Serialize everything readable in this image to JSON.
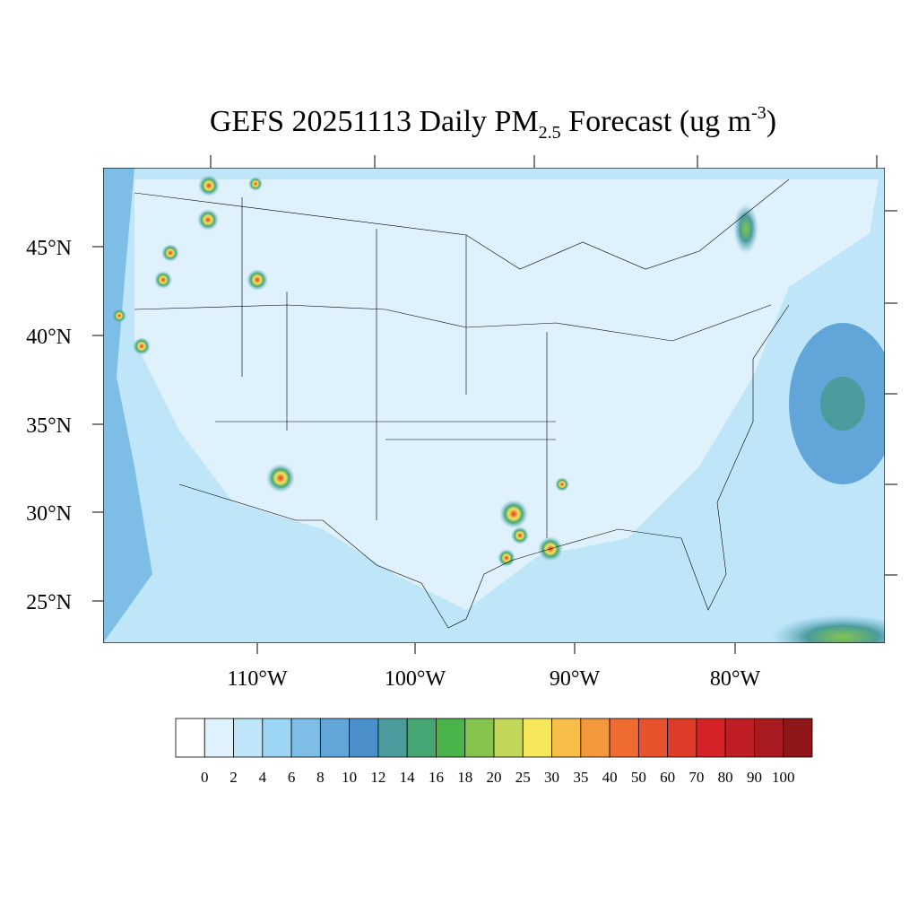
{
  "map": {
    "title": {
      "main": "GEFS 20251113 Daily PM",
      "sub": "2.5",
      "mid": " Forecast (ug m",
      "sup": "-3",
      "end": ")"
    },
    "lat_labels": [
      "45°N",
      "40°N",
      "35°N",
      "30°N",
      "25°N"
    ],
    "lon_labels": [
      "110°W",
      "100°W",
      "90°W",
      "80°W"
    ],
    "colorbar": {
      "colors": [
        "#ffffff",
        "#dff1fb",
        "#bfe6f8",
        "#9dd6f4",
        "#7dbde6",
        "#62a5d8",
        "#4b8fcb",
        "#4a9c9c",
        "#45a573",
        "#4ab44a",
        "#84c34c",
        "#c2d659",
        "#f6e65a",
        "#f7be4a",
        "#f4983d",
        "#ef6b30",
        "#e7532c",
        "#de3b28",
        "#d42228",
        "#bf1e24",
        "#a91b21",
        "#8f1719"
      ],
      "labels": [
        0,
        2,
        4,
        6,
        8,
        10,
        12,
        14,
        16,
        18,
        20,
        25,
        30,
        35,
        40,
        50,
        60,
        70,
        80,
        90,
        100
      ]
    }
  }
}
